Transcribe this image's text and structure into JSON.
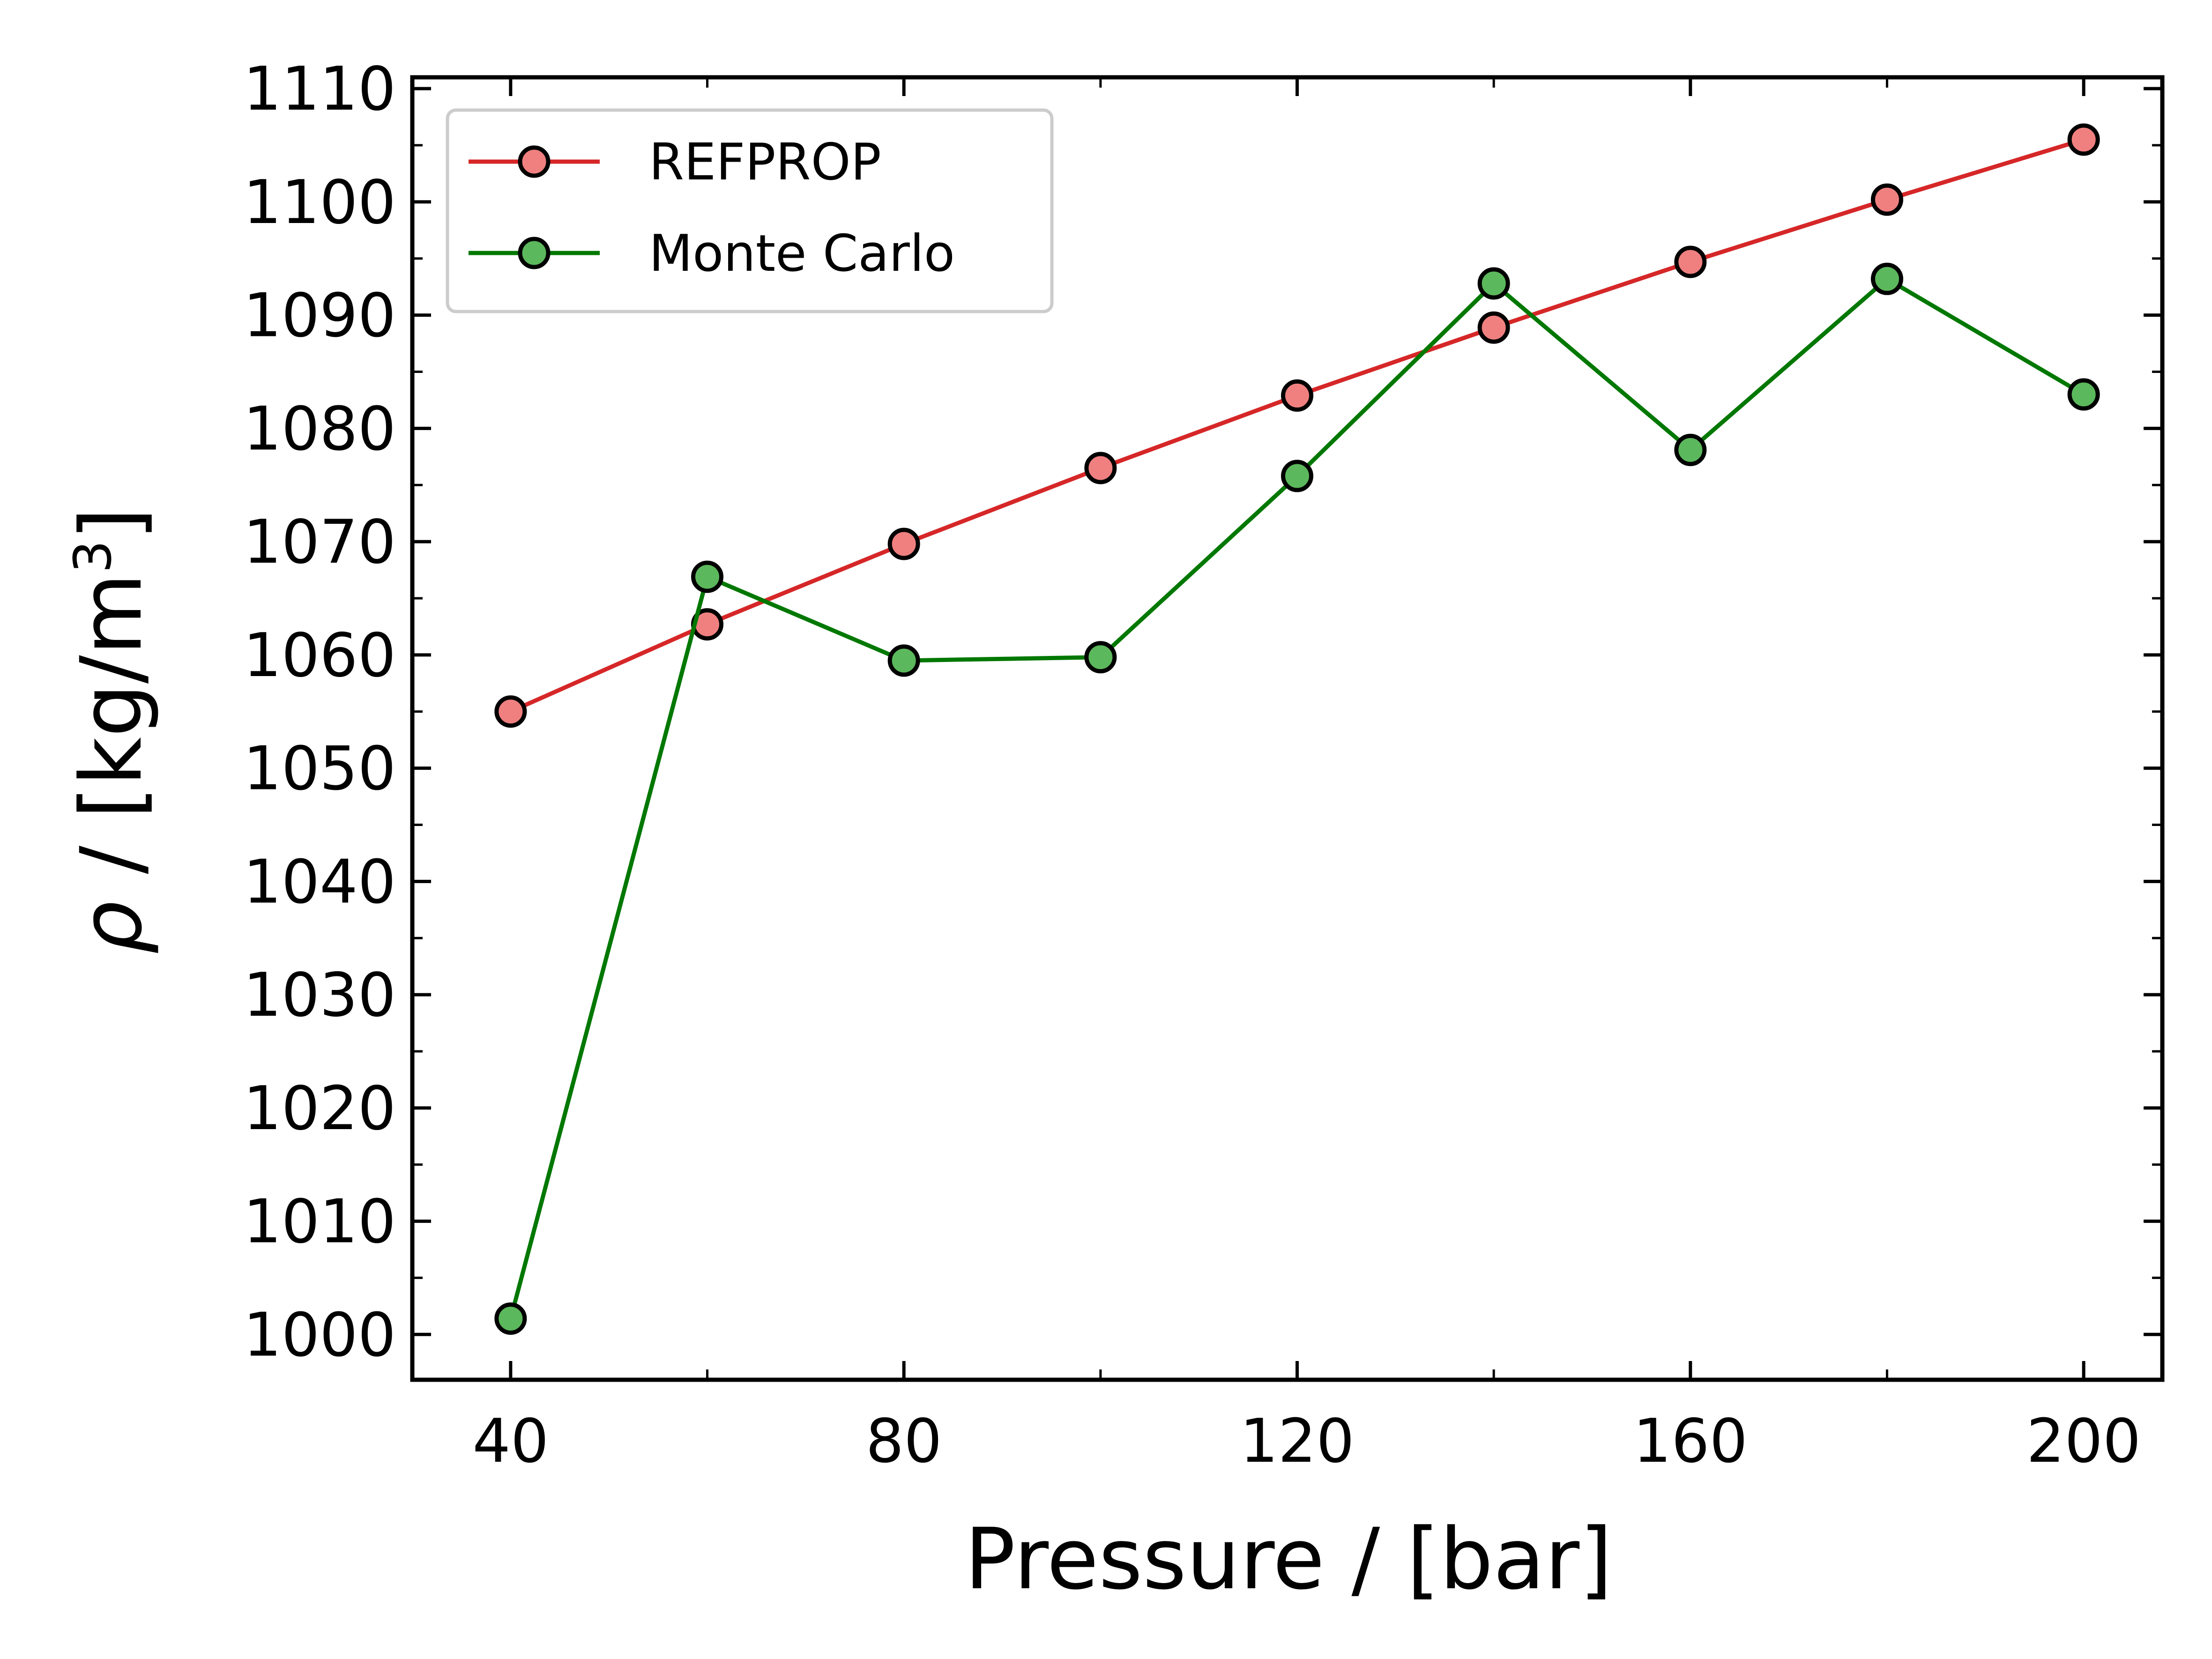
{
  "chart_data": {
    "type": "line",
    "xlabel": "Pressure / [bar]",
    "ylabel_prefix": "ρ",
    "ylabel_rest": " / [kg/m",
    "ylabel_sup": "3",
    "ylabel_close": "]",
    "xlim": [
      30,
      208
    ],
    "ylim": [
      996,
      1111
    ],
    "x_ticks": [
      40,
      80,
      120,
      160,
      200
    ],
    "x_tick_labels": [
      "40",
      "80",
      "120",
      "160",
      "200"
    ],
    "x_minor_ticks": [
      60,
      100,
      140,
      180
    ],
    "y_ticks": [
      1000,
      1010,
      1020,
      1030,
      1040,
      1050,
      1060,
      1070,
      1080,
      1090,
      1100,
      1110
    ],
    "y_tick_labels": [
      "1000",
      "1010",
      "1020",
      "1030",
      "1040",
      "1050",
      "1060",
      "1070",
      "1080",
      "1090",
      "1100",
      "1110"
    ],
    "y_minor_ticks": [
      1005,
      1015,
      1025,
      1035,
      1045,
      1055,
      1065,
      1075,
      1085,
      1095,
      1105
    ],
    "grid": false,
    "legend_position": "top-left",
    "x": [
      40,
      60,
      80,
      100,
      120,
      140,
      160,
      180,
      200
    ],
    "series": [
      {
        "name": "REFPROP",
        "values": [
          1055.0,
          1062.7,
          1069.8,
          1076.5,
          1082.9,
          1088.9,
          1094.7,
          1100.2,
          1105.5
        ],
        "line_color": "#d62728",
        "marker_fill": "#f08080"
      },
      {
        "name": "Monte Carlo",
        "values": [
          1001.4,
          1066.9,
          1059.5,
          1059.8,
          1075.8,
          1092.8,
          1078.1,
          1093.2,
          1083.0
        ],
        "line_color": "#007800",
        "marker_fill": "#5cb85c"
      }
    ]
  }
}
